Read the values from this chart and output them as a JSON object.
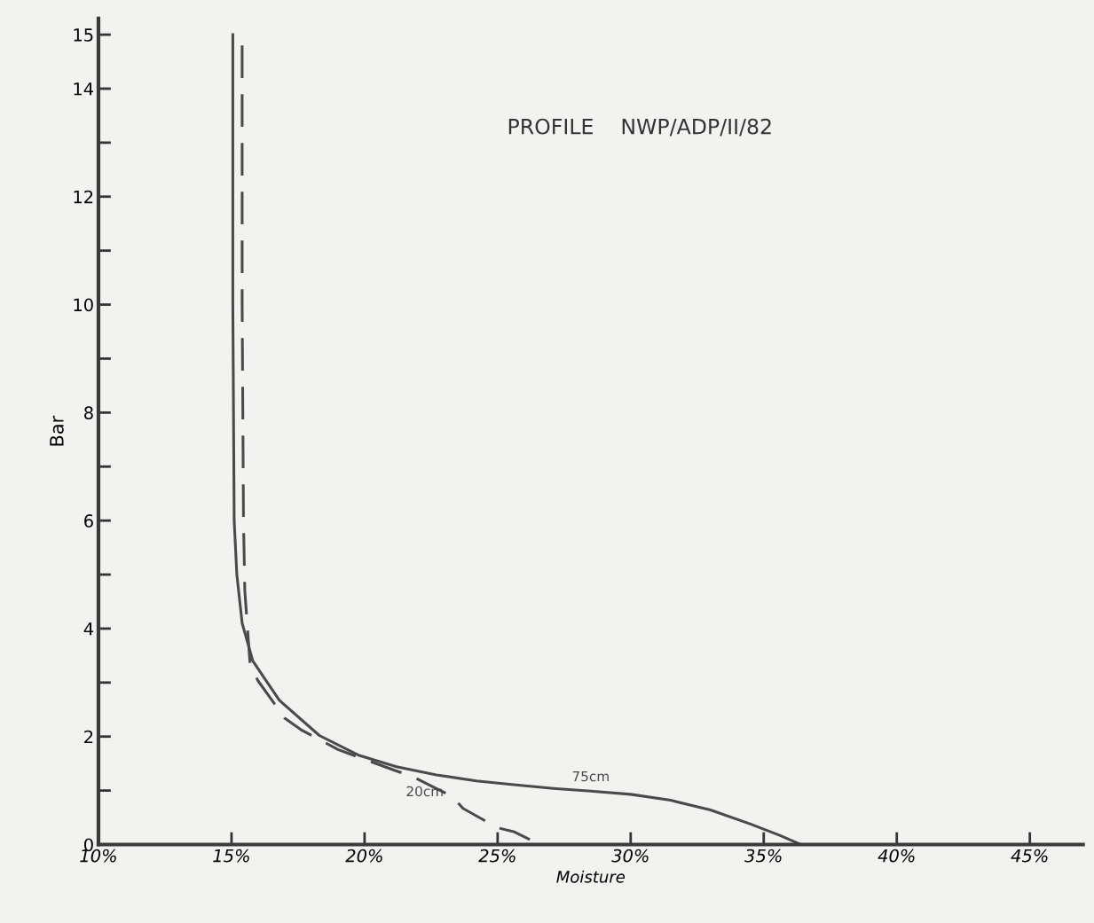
{
  "chart_data": {
    "type": "line",
    "title": "PROFILE    NWP/ADP/II/82",
    "xlabel": "Moisture",
    "ylabel": "Bar",
    "xlim": [
      10,
      47
    ],
    "ylim": [
      0,
      15.3
    ],
    "xticks": [
      {
        "value": 10,
        "label": "10%"
      },
      {
        "value": 15,
        "label": "15%"
      },
      {
        "value": 20,
        "label": "20%"
      },
      {
        "value": 25,
        "label": "25%"
      },
      {
        "value": 30,
        "label": "30%"
      },
      {
        "value": 35,
        "label": "35%"
      },
      {
        "value": 40,
        "label": "40%"
      },
      {
        "value": 45,
        "label": "45%"
      }
    ],
    "yticks": [
      0,
      {
        "value": 1,
        "label": null
      },
      2,
      {
        "value": 3,
        "label": null
      },
      4,
      {
        "value": 5,
        "label": null
      },
      6,
      {
        "value": 7,
        "label": null
      },
      8,
      {
        "value": 9,
        "label": null
      },
      10,
      {
        "value": 11,
        "label": null
      },
      12,
      {
        "value": 13,
        "label": null
      },
      14,
      15
    ],
    "grid": false,
    "legend": false,
    "marker": "none",
    "series": [
      {
        "name": "75cm",
        "color": "#4a4a4a",
        "line_style": "solid",
        "x": [
          15.05,
          15.05,
          15.1,
          15.2,
          15.4,
          15.8,
          16.8,
          18.3,
          19.8,
          21.2,
          22.7,
          24.2,
          25.6,
          27.1,
          28.5,
          30.0,
          31.5,
          33.0,
          34.5,
          35.6,
          36.4
        ],
        "values": [
          15,
          10,
          6,
          5,
          4.1,
          3.4,
          2.67,
          2.02,
          1.65,
          1.44,
          1.29,
          1.18,
          1.11,
          1.04,
          0.99,
          0.93,
          0.82,
          0.64,
          0.38,
          0.17,
          0
        ]
      },
      {
        "name": "20cm",
        "color": "#4a4a4a",
        "line_style": "dashed",
        "x": [
          15.4,
          15.4,
          15.45,
          15.5,
          15.7,
          16.0,
          17.0,
          17.6,
          19.0,
          19.6,
          21.1,
          21.8,
          23.3,
          23.7,
          25.0,
          25.6,
          26.6
        ],
        "values": [
          14.8,
          10,
          6,
          4.7,
          3.32,
          3.03,
          2.34,
          2.13,
          1.76,
          1.65,
          1.38,
          1.26,
          0.89,
          0.67,
          0.31,
          0.24,
          0
        ]
      }
    ]
  }
}
